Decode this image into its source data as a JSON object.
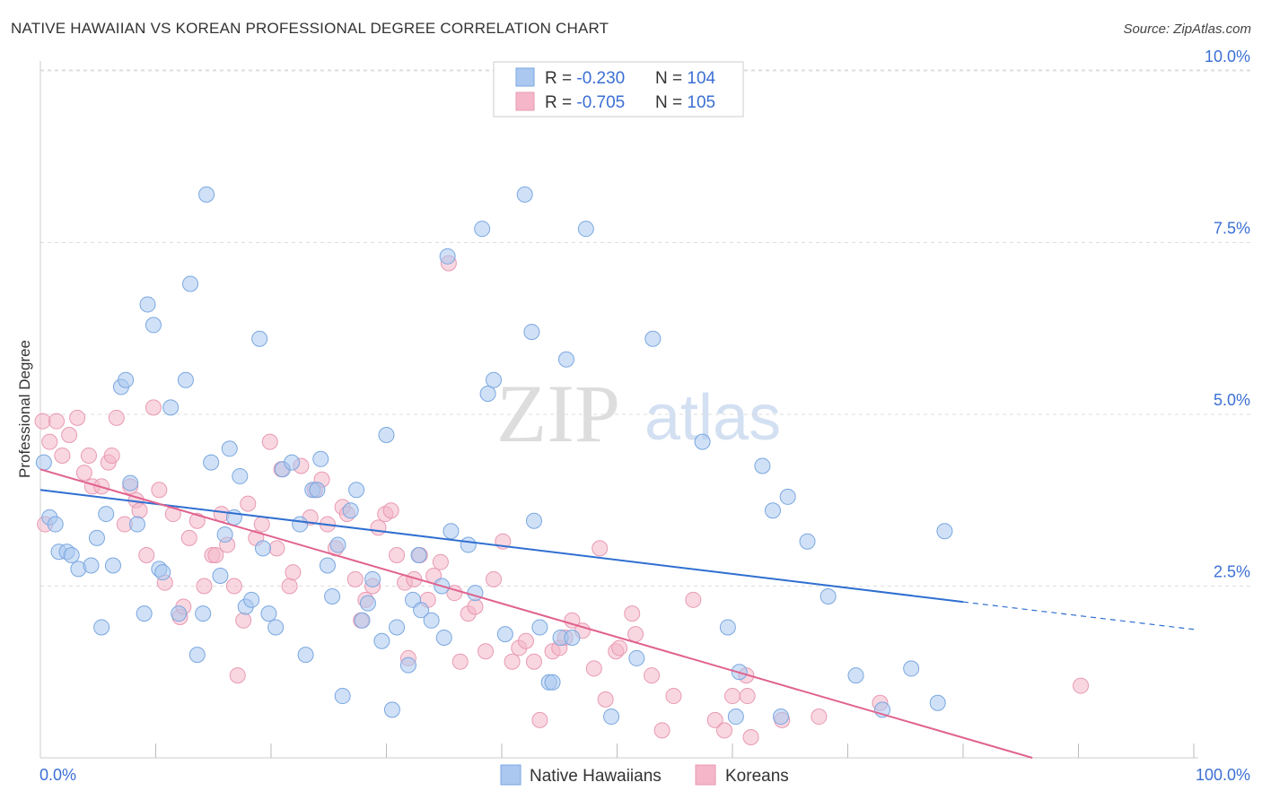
{
  "header": {
    "title": "NATIVE HAWAIIAN VS KOREAN PROFESSIONAL DEGREE CORRELATION CHART",
    "source": "Source: ZipAtlas.com"
  },
  "watermark": {
    "zip": "ZIP",
    "atlas": "atlas"
  },
  "stats_legend": {
    "rows": [
      {
        "r_label": "R = ",
        "r_value": "-0.230",
        "n_label": "N = ",
        "n_value": "104",
        "color": "#aac8f0"
      },
      {
        "r_label": "R = ",
        "r_value": "-0.705",
        "n_label": "N = ",
        "n_value": "105",
        "color": "#f4b6c8"
      }
    ]
  },
  "colors": {
    "blue_fill": "#aac8f0",
    "blue_stroke": "#7aa7e0",
    "blue_line": "#2f6fd0",
    "pink_fill": "#f4b6c8",
    "pink_stroke": "#e89ab2",
    "pink_line": "#e0628e",
    "value_text": "#3b6fd4",
    "grid": "#dddddd"
  },
  "chart_data": {
    "type": "scatter",
    "title": "NATIVE HAWAIIAN VS KOREAN PROFESSIONAL DEGREE CORRELATION CHART",
    "xlabel": "",
    "ylabel": "Professional Degree",
    "xlim": [
      0,
      100
    ],
    "ylim": [
      0,
      10.5
    ],
    "x_tick_labels": [
      "0.0%",
      "100.0%"
    ],
    "y_ticks": [
      2.5,
      5.0,
      7.5,
      10.0
    ],
    "y_tick_labels": [
      "2.5%",
      "5.0%",
      "7.5%",
      "10.0%"
    ],
    "grid": "horizontal dashed",
    "legend_position": "bottom-center",
    "series": [
      {
        "name": "Native Hawaiians",
        "r": -0.23,
        "n": 104,
        "trend": {
          "x0": 0,
          "y0": 3.9,
          "x1": 80,
          "y1": 2.27,
          "dashed_to_x": 100,
          "dashed_to_y": 1.87
        },
        "points": [
          [
            0.3,
            4.3
          ],
          [
            0.8,
            3.5
          ],
          [
            1.3,
            3.4
          ],
          [
            1.6,
            3.0
          ],
          [
            2.3,
            3.0
          ],
          [
            2.7,
            2.95
          ],
          [
            3.3,
            2.75
          ],
          [
            4.4,
            2.8
          ],
          [
            4.9,
            3.2
          ],
          [
            5.3,
            1.9
          ],
          [
            5.7,
            3.55
          ],
          [
            6.3,
            2.8
          ],
          [
            7.0,
            5.4
          ],
          [
            7.4,
            5.5
          ],
          [
            7.8,
            4.0
          ],
          [
            8.4,
            3.4
          ],
          [
            9.0,
            2.1
          ],
          [
            9.3,
            6.6
          ],
          [
            9.8,
            6.3
          ],
          [
            10.3,
            2.75
          ],
          [
            10.6,
            2.7
          ],
          [
            11.3,
            5.1
          ],
          [
            12.0,
            2.1
          ],
          [
            12.6,
            5.5
          ],
          [
            13.0,
            6.9
          ],
          [
            13.6,
            1.5
          ],
          [
            14.1,
            2.1
          ],
          [
            14.4,
            8.2
          ],
          [
            14.8,
            4.3
          ],
          [
            15.6,
            2.65
          ],
          [
            16.0,
            3.25
          ],
          [
            16.4,
            4.5
          ],
          [
            16.8,
            3.5
          ],
          [
            17.3,
            4.1
          ],
          [
            17.8,
            2.2
          ],
          [
            18.3,
            2.3
          ],
          [
            19.0,
            6.1
          ],
          [
            19.3,
            3.05
          ],
          [
            19.8,
            2.1
          ],
          [
            20.4,
            1.9
          ],
          [
            21.0,
            4.2
          ],
          [
            21.8,
            4.3
          ],
          [
            22.5,
            3.4
          ],
          [
            23.0,
            1.5
          ],
          [
            23.6,
            3.9
          ],
          [
            24.0,
            3.9
          ],
          [
            24.3,
            4.35
          ],
          [
            24.9,
            2.8
          ],
          [
            25.3,
            2.35
          ],
          [
            25.8,
            3.1
          ],
          [
            26.2,
            0.9
          ],
          [
            26.9,
            3.6
          ],
          [
            27.4,
            3.9
          ],
          [
            27.9,
            2.0
          ],
          [
            28.4,
            2.25
          ],
          [
            28.8,
            2.6
          ],
          [
            29.6,
            1.7
          ],
          [
            30.0,
            4.7
          ],
          [
            30.5,
            0.7
          ],
          [
            30.9,
            1.9
          ],
          [
            31.9,
            1.35
          ],
          [
            32.3,
            2.3
          ],
          [
            32.8,
            2.95
          ],
          [
            33.0,
            2.15
          ],
          [
            33.9,
            2.0
          ],
          [
            34.8,
            2.5
          ],
          [
            35.0,
            1.75
          ],
          [
            35.3,
            7.3
          ],
          [
            35.6,
            3.3
          ],
          [
            37.1,
            3.1
          ],
          [
            37.7,
            2.4
          ],
          [
            38.3,
            7.7
          ],
          [
            38.8,
            5.3
          ],
          [
            39.3,
            5.5
          ],
          [
            40.3,
            1.8
          ],
          [
            42.0,
            8.2
          ],
          [
            42.6,
            6.2
          ],
          [
            42.8,
            3.45
          ],
          [
            43.3,
            1.9
          ],
          [
            44.1,
            1.1
          ],
          [
            44.4,
            1.1
          ],
          [
            45.1,
            1.75
          ],
          [
            45.6,
            5.8
          ],
          [
            46.1,
            1.75
          ],
          [
            47.3,
            7.7
          ],
          [
            49.5,
            0.6
          ],
          [
            51.7,
            1.45
          ],
          [
            53.1,
            6.1
          ],
          [
            57.4,
            4.6
          ],
          [
            59.6,
            1.9
          ],
          [
            60.3,
            0.6
          ],
          [
            60.6,
            1.25
          ],
          [
            62.6,
            4.25
          ],
          [
            63.5,
            3.6
          ],
          [
            64.2,
            0.6
          ],
          [
            64.8,
            3.8
          ],
          [
            66.5,
            3.15
          ],
          [
            68.3,
            2.35
          ],
          [
            70.7,
            1.2
          ],
          [
            73.0,
            0.7
          ],
          [
            75.5,
            1.3
          ],
          [
            77.8,
            0.8
          ],
          [
            78.4,
            3.3
          ]
        ]
      },
      {
        "name": "Koreans",
        "r": -0.705,
        "n": 105,
        "trend": {
          "x0": 0,
          "y0": 4.2,
          "x1": 86,
          "y1": 0.0
        },
        "points": [
          [
            0.2,
            4.9
          ],
          [
            0.4,
            3.4
          ],
          [
            0.8,
            4.6
          ],
          [
            1.4,
            4.9
          ],
          [
            1.9,
            4.4
          ],
          [
            2.5,
            4.7
          ],
          [
            3.2,
            4.95
          ],
          [
            3.8,
            4.15
          ],
          [
            4.2,
            4.4
          ],
          [
            4.5,
            3.95
          ],
          [
            5.3,
            3.95
          ],
          [
            5.9,
            4.3
          ],
          [
            6.2,
            4.4
          ],
          [
            6.6,
            4.95
          ],
          [
            7.3,
            3.4
          ],
          [
            7.8,
            3.95
          ],
          [
            8.3,
            3.75
          ],
          [
            8.6,
            3.6
          ],
          [
            9.2,
            2.95
          ],
          [
            9.8,
            5.1
          ],
          [
            10.3,
            3.9
          ],
          [
            10.8,
            2.55
          ],
          [
            11.5,
            3.55
          ],
          [
            12.1,
            2.05
          ],
          [
            12.4,
            2.2
          ],
          [
            12.9,
            3.2
          ],
          [
            13.6,
            3.45
          ],
          [
            14.2,
            2.5
          ],
          [
            14.9,
            2.95
          ],
          [
            15.2,
            2.95
          ],
          [
            15.7,
            3.55
          ],
          [
            16.2,
            3.1
          ],
          [
            16.8,
            2.5
          ],
          [
            17.1,
            1.2
          ],
          [
            17.6,
            2.0
          ],
          [
            18.0,
            3.7
          ],
          [
            18.7,
            3.2
          ],
          [
            19.2,
            3.4
          ],
          [
            19.9,
            4.6
          ],
          [
            20.5,
            3.05
          ],
          [
            20.9,
            4.2
          ],
          [
            21.6,
            2.5
          ],
          [
            21.9,
            2.7
          ],
          [
            22.6,
            4.25
          ],
          [
            23.4,
            3.5
          ],
          [
            23.8,
            3.9
          ],
          [
            24.4,
            4.05
          ],
          [
            24.9,
            3.4
          ],
          [
            25.6,
            3.05
          ],
          [
            26.2,
            3.65
          ],
          [
            26.6,
            3.55
          ],
          [
            27.3,
            2.6
          ],
          [
            27.8,
            2.0
          ],
          [
            28.2,
            2.3
          ],
          [
            28.8,
            2.5
          ],
          [
            29.3,
            3.35
          ],
          [
            29.9,
            3.55
          ],
          [
            30.4,
            3.6
          ],
          [
            30.9,
            2.95
          ],
          [
            31.6,
            2.55
          ],
          [
            31.9,
            1.45
          ],
          [
            32.4,
            2.6
          ],
          [
            32.9,
            2.95
          ],
          [
            33.6,
            2.3
          ],
          [
            34.1,
            2.65
          ],
          [
            34.7,
            2.85
          ],
          [
            35.4,
            7.2
          ],
          [
            35.9,
            2.4
          ],
          [
            36.4,
            1.4
          ],
          [
            37.1,
            2.1
          ],
          [
            37.7,
            2.2
          ],
          [
            38.6,
            1.55
          ],
          [
            39.3,
            2.6
          ],
          [
            40.1,
            3.15
          ],
          [
            40.9,
            1.4
          ],
          [
            41.5,
            1.6
          ],
          [
            42.1,
            1.7
          ],
          [
            42.8,
            1.4
          ],
          [
            43.3,
            0.55
          ],
          [
            44.4,
            1.55
          ],
          [
            45.0,
            1.6
          ],
          [
            45.5,
            1.75
          ],
          [
            46.1,
            2.0
          ],
          [
            47.0,
            1.85
          ],
          [
            48.0,
            1.3
          ],
          [
            48.5,
            3.05
          ],
          [
            49.0,
            0.85
          ],
          [
            49.9,
            1.55
          ],
          [
            50.2,
            1.6
          ],
          [
            51.3,
            2.1
          ],
          [
            51.6,
            1.8
          ],
          [
            53.0,
            1.2
          ],
          [
            53.9,
            0.4
          ],
          [
            54.9,
            0.9
          ],
          [
            56.6,
            2.3
          ],
          [
            58.5,
            0.55
          ],
          [
            59.3,
            0.4
          ],
          [
            60.0,
            0.9
          ],
          [
            61.2,
            1.2
          ],
          [
            61.3,
            0.9
          ],
          [
            61.6,
            0.3
          ],
          [
            64.3,
            0.55
          ],
          [
            67.5,
            0.6
          ],
          [
            72.8,
            0.8
          ],
          [
            90.2,
            1.05
          ]
        ]
      }
    ]
  },
  "bottom_legend": {
    "items": [
      {
        "label": "Native Hawaiians"
      },
      {
        "label": "Koreans"
      }
    ]
  }
}
